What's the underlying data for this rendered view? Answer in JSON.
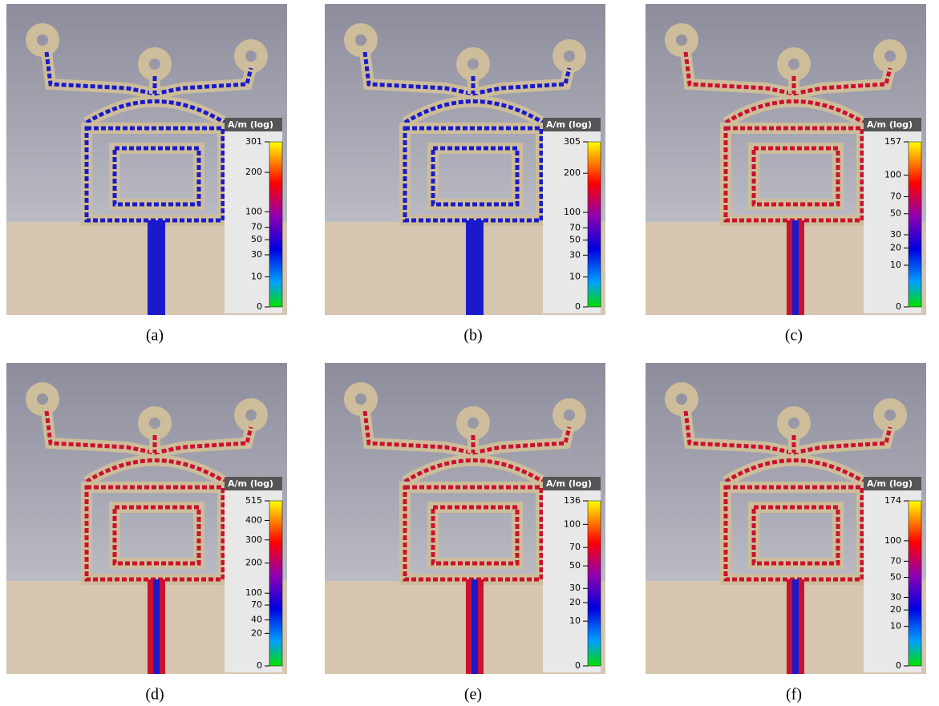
{
  "panels": [
    {
      "label": "(a)",
      "unit": "A/m (log)",
      "ticks": [
        301,
        200,
        100,
        70,
        50,
        30,
        10,
        0
      ]
    },
    {
      "label": "(b)",
      "unit": "A/m (log)",
      "ticks": [
        305,
        200,
        100,
        70,
        50,
        30,
        10,
        0
      ]
    },
    {
      "label": "(c)",
      "unit": "A/m (log)",
      "ticks": [
        157,
        100,
        70,
        50,
        30,
        20,
        10,
        0
      ]
    },
    {
      "label": "(d)",
      "unit": "A/m (log)",
      "ticks": [
        515,
        400,
        300,
        200,
        100,
        70,
        40,
        20,
        0
      ]
    },
    {
      "label": "(e)",
      "unit": "A/m (log)",
      "ticks": [
        136,
        100,
        70,
        50,
        30,
        20,
        10,
        0
      ]
    },
    {
      "label": "(f)",
      "unit": "A/m (log)",
      "ticks": [
        174,
        100,
        70,
        50,
        30,
        20,
        10,
        0
      ]
    }
  ]
}
